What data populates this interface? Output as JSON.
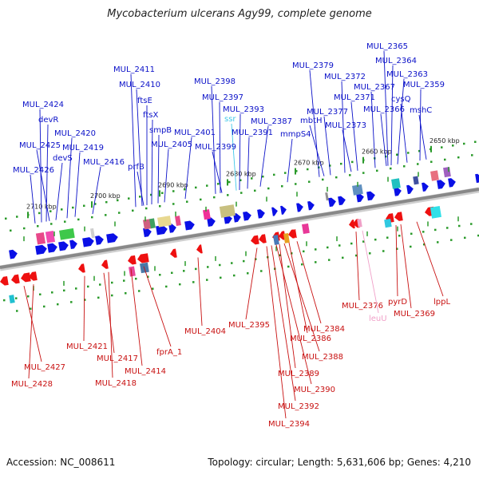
{
  "title": "Mycobacterium ulcerans Agy99, complete genome",
  "footer": {
    "accession_label": "Accession:",
    "accession": "NC_008611",
    "topology": "Topology: circular; Length: 5,631,606 bp; Genes: 4,210"
  },
  "colors": {
    "forward_gene": "#0a10e6",
    "reverse_gene": "#ee1010",
    "forward_label": "#0a10c8",
    "reverse_label": "#c81010",
    "rna_forward_label": "#40c8e8",
    "rna_reverse_label": "#f0a0c8",
    "backbone": "#888888",
    "tick_minor": "#2a9a2a",
    "tick_major": "#444444"
  },
  "ruler": [
    {
      "label": "2710 kbp"
    },
    {
      "label": "2700 kbp"
    },
    {
      "label": "2690 kbp"
    },
    {
      "label": "2680 kbp"
    },
    {
      "label": "2670 kbp"
    },
    {
      "label": "2660 kbp"
    },
    {
      "label": "2650 kbp"
    }
  ],
  "forward_labels": [
    {
      "text": "MUL_2424",
      "kind": "gene"
    },
    {
      "text": "devR",
      "kind": "gene"
    },
    {
      "text": "MUL_2425",
      "kind": "gene"
    },
    {
      "text": "devS",
      "kind": "gene"
    },
    {
      "text": "MUL_2426",
      "kind": "gene"
    },
    {
      "text": "MUL_2420",
      "kind": "gene"
    },
    {
      "text": "MUL_2419",
      "kind": "gene"
    },
    {
      "text": "MUL_2416",
      "kind": "gene"
    },
    {
      "text": "MUL_2411",
      "kind": "gene"
    },
    {
      "text": "MUL_2410",
      "kind": "gene"
    },
    {
      "text": "ftsE",
      "kind": "gene"
    },
    {
      "text": "ftsX",
      "kind": "gene"
    },
    {
      "text": "smpB",
      "kind": "gene"
    },
    {
      "text": "prfB",
      "kind": "gene"
    },
    {
      "text": "MUL_2405",
      "kind": "gene"
    },
    {
      "text": "MUL_2401",
      "kind": "gene"
    },
    {
      "text": "MUL_2398",
      "kind": "gene"
    },
    {
      "text": "MUL_2397",
      "kind": "gene"
    },
    {
      "text": "ssr",
      "kind": "rna"
    },
    {
      "text": "MUL_2399",
      "kind": "gene"
    },
    {
      "text": "MUL_2393",
      "kind": "gene"
    },
    {
      "text": "MUL_2391",
      "kind": "gene"
    },
    {
      "text": "MUL_2387",
      "kind": "gene"
    },
    {
      "text": "mmpS4",
      "kind": "gene"
    },
    {
      "text": "MUL_2379",
      "kind": "gene"
    },
    {
      "text": "mbtH",
      "kind": "gene"
    },
    {
      "text": "MUL_2377",
      "kind": "gene"
    },
    {
      "text": "MUL_2372",
      "kind": "gene"
    },
    {
      "text": "MUL_2373",
      "kind": "gene"
    },
    {
      "text": "MUL_2371",
      "kind": "gene"
    },
    {
      "text": "MUL_2365",
      "kind": "gene"
    },
    {
      "text": "MUL_2364",
      "kind": "gene"
    },
    {
      "text": "MUL_2363",
      "kind": "gene"
    },
    {
      "text": "MUL_2367",
      "kind": "gene"
    },
    {
      "text": "cysQ",
      "kind": "gene"
    },
    {
      "text": "MUL_2366",
      "kind": "gene"
    },
    {
      "text": "MUL_2359",
      "kind": "gene"
    },
    {
      "text": "mshC",
      "kind": "gene"
    }
  ],
  "reverse_labels": [
    {
      "text": "MUL_2427",
      "kind": "gene"
    },
    {
      "text": "MUL_2428",
      "kind": "gene"
    },
    {
      "text": "MUL_2421",
      "kind": "gene"
    },
    {
      "text": "MUL_2417",
      "kind": "gene"
    },
    {
      "text": "MUL_2418",
      "kind": "gene"
    },
    {
      "text": "MUL_2414",
      "kind": "gene"
    },
    {
      "text": "fprA_1",
      "kind": "gene"
    },
    {
      "text": "MUL_2404",
      "kind": "gene"
    },
    {
      "text": "MUL_2395",
      "kind": "gene"
    },
    {
      "text": "MUL_2384",
      "kind": "gene"
    },
    {
      "text": "MUL_2386",
      "kind": "gene"
    },
    {
      "text": "MUL_2388",
      "kind": "gene"
    },
    {
      "text": "MUL_2389",
      "kind": "gene"
    },
    {
      "text": "MUL_2390",
      "kind": "gene"
    },
    {
      "text": "MUL_2392",
      "kind": "gene"
    },
    {
      "text": "MUL_2394",
      "kind": "gene"
    },
    {
      "text": "MUL_2376",
      "kind": "gene"
    },
    {
      "text": "leuU",
      "kind": "rna"
    },
    {
      "text": "pyrD",
      "kind": "gene"
    },
    {
      "text": "MUL_2369",
      "kind": "gene"
    },
    {
      "text": "lppL",
      "kind": "gene"
    }
  ]
}
